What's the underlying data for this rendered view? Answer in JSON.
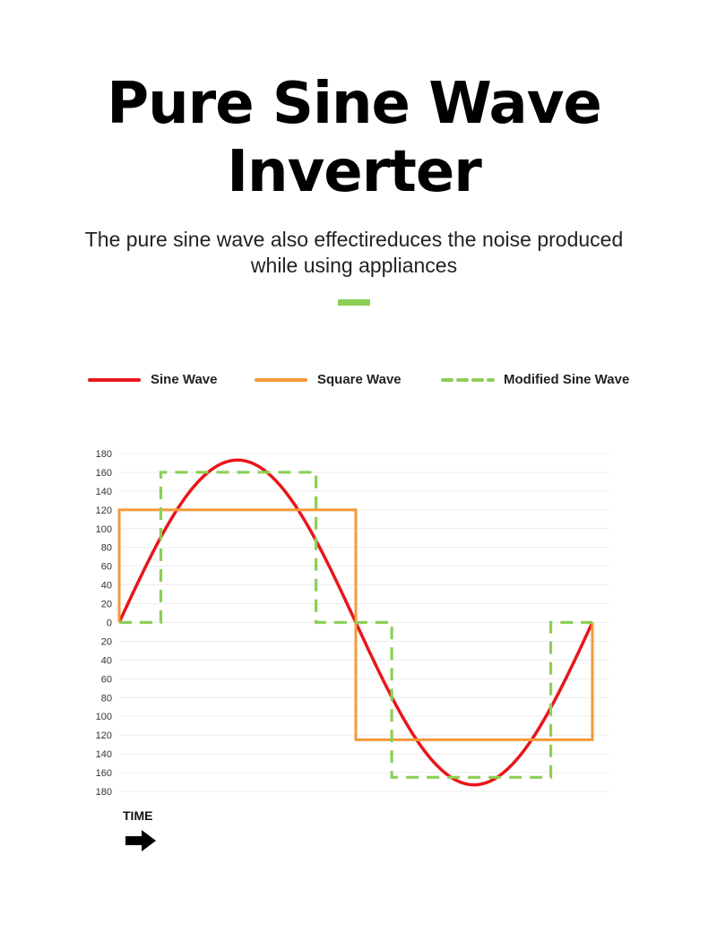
{
  "header": {
    "title_line1": "Pure Sine Wave",
    "title_line2": "Inverter",
    "subtitle_line1": "The pure sine wave also effectireduces the noise produced",
    "subtitle_line2": "while using appliances",
    "accent_color": "#8ccf55"
  },
  "legend": {
    "items": [
      {
        "label": "Sine Wave",
        "color": "#e8161a",
        "style": "solid"
      },
      {
        "label": "Square Wave",
        "color": "#f29a3a",
        "style": "solid"
      },
      {
        "label": "Modified Sine Wave",
        "color": "#8ccf55",
        "style": "dashed"
      }
    ]
  },
  "axis": {
    "time_label": "TIME",
    "time_icon": "right-arrow-icon"
  },
  "chart_data": {
    "type": "line",
    "title": "",
    "xlabel": "TIME",
    "ylabel": "",
    "ylim": [
      -180,
      180
    ],
    "xlim": [
      0,
      12.5
    ],
    "y_ticks": [
      180,
      160,
      140,
      120,
      100,
      80,
      60,
      40,
      20,
      0,
      -20,
      -40,
      -60,
      -80,
      -100,
      -120,
      -140,
      -160,
      -180
    ],
    "y_tick_labels": [
      "180",
      "160",
      "140",
      "120",
      "100",
      "80",
      "60",
      "40",
      "20",
      "0",
      "20",
      "40",
      "60",
      "80",
      "100",
      "120",
      "140",
      "160",
      "180"
    ],
    "grid": true,
    "legend_position": "top",
    "series": [
      {
        "name": "Sine Wave",
        "color": "#e8161a",
        "kind": "sine",
        "amplitude": 173,
        "period": 12.5,
        "x": [
          0,
          0.625,
          1.25,
          1.875,
          2.5,
          3.125,
          3.75,
          4.375,
          5,
          5.625,
          6.25,
          6.875,
          7.5,
          8.125,
          8.75,
          9.375,
          10,
          10.625,
          11.25,
          11.875,
          12.5
        ],
        "values": [
          0,
          54,
          102,
          140,
          165,
          173,
          165,
          140,
          102,
          54,
          0,
          -54,
          -102,
          -140,
          -165,
          -173,
          -165,
          -140,
          -102,
          -54,
          0
        ]
      },
      {
        "name": "Square Wave",
        "color": "#f29a3a",
        "kind": "step",
        "x": [
          0,
          0,
          6.25,
          6.25,
          12.5,
          12.5
        ],
        "values": [
          0,
          120,
          120,
          -125,
          -125,
          0
        ]
      },
      {
        "name": "Modified Sine Wave",
        "color": "#8ccf55",
        "kind": "step",
        "dashed": true,
        "x": [
          0,
          1.1,
          1.1,
          5.2,
          5.2,
          7.2,
          7.2,
          11.4,
          11.4,
          12.5
        ],
        "values": [
          0,
          0,
          160,
          160,
          0,
          0,
          -165,
          -165,
          0,
          0
        ]
      }
    ]
  }
}
